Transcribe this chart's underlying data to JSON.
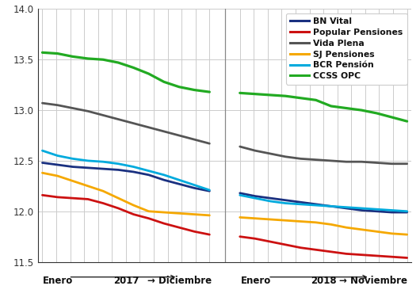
{
  "ylim": [
    11.5,
    14.0
  ],
  "yticks": [
    11.5,
    12.0,
    12.5,
    13.0,
    13.5,
    14.0
  ],
  "figsize": [
    5.3,
    3.8
  ],
  "dpi": 100,
  "series": {
    "BN Vital": {
      "color": "#1a3080",
      "lw": 2.0,
      "values_2017": [
        12.48,
        12.46,
        12.44,
        12.43,
        12.42,
        12.41,
        12.39,
        12.36,
        12.31,
        12.27,
        12.23,
        12.2
      ],
      "values_2018": [
        12.18,
        12.15,
        12.13,
        12.11,
        12.09,
        12.07,
        12.05,
        12.03,
        12.01,
        12.0,
        11.99,
        11.99
      ]
    },
    "Popular Pensiones": {
      "color": "#cc1111",
      "lw": 2.0,
      "values_2017": [
        12.16,
        12.14,
        12.13,
        12.12,
        12.08,
        12.03,
        11.97,
        11.93,
        11.88,
        11.84,
        11.8,
        11.77
      ],
      "values_2018": [
        11.75,
        11.73,
        11.7,
        11.67,
        11.64,
        11.62,
        11.6,
        11.58,
        11.57,
        11.56,
        11.55,
        11.54
      ]
    },
    "Vida Plena": {
      "color": "#555555",
      "lw": 2.0,
      "values_2017": [
        13.07,
        13.05,
        13.02,
        12.99,
        12.95,
        12.91,
        12.87,
        12.83,
        12.79,
        12.75,
        12.71,
        12.67
      ],
      "values_2018": [
        12.64,
        12.6,
        12.57,
        12.54,
        12.52,
        12.51,
        12.5,
        12.49,
        12.49,
        12.48,
        12.47,
        12.47
      ]
    },
    "SJ Pensiones": {
      "color": "#f5a800",
      "lw": 2.0,
      "values_2017": [
        12.38,
        12.35,
        12.3,
        12.25,
        12.2,
        12.13,
        12.06,
        12.0,
        11.99,
        11.98,
        11.97,
        11.96
      ],
      "values_2018": [
        11.94,
        11.93,
        11.92,
        11.91,
        11.9,
        11.89,
        11.87,
        11.84,
        11.82,
        11.8,
        11.78,
        11.77
      ]
    },
    "BCR Pensión": {
      "color": "#00aadd",
      "lw": 2.0,
      "values_2017": [
        12.6,
        12.55,
        12.52,
        12.5,
        12.49,
        12.47,
        12.44,
        12.4,
        12.36,
        12.31,
        12.26,
        12.21
      ],
      "values_2018": [
        12.16,
        12.13,
        12.1,
        12.08,
        12.07,
        12.06,
        12.05,
        12.04,
        12.03,
        12.02,
        12.01,
        12.0
      ]
    },
    "CCSS OPC": {
      "color": "#22aa22",
      "lw": 2.3,
      "values_2017": [
        13.57,
        13.56,
        13.53,
        13.51,
        13.5,
        13.47,
        13.42,
        13.36,
        13.28,
        13.23,
        13.2,
        13.18
      ],
      "values_2018": [
        13.17,
        13.16,
        13.15,
        13.14,
        13.12,
        13.1,
        13.04,
        13.02,
        13.0,
        12.97,
        12.93,
        12.89
      ]
    }
  },
  "legend_order": [
    "BN Vital",
    "Popular Pensiones",
    "Vida Plena",
    "SJ Pensiones",
    "BCR Pensión",
    "CCSS OPC"
  ],
  "grid_color": "#cccccc",
  "bg_color": "#ffffff",
  "tick_color": "#333333",
  "spine_color": "#333333"
}
